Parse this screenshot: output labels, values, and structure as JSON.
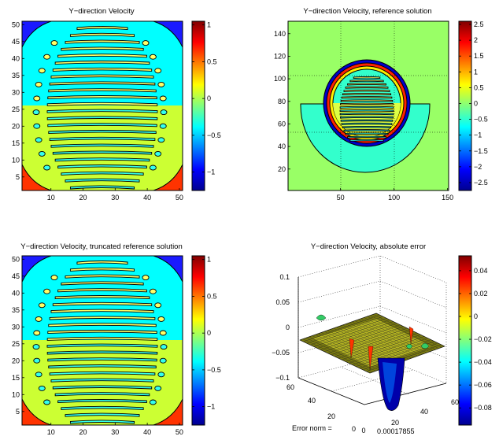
{
  "chart_data": [
    {
      "type": "heatmap",
      "title": "Y−direction Velocity",
      "xlabel": "",
      "ylabel": "",
      "xlim": [
        1,
        51
      ],
      "ylim": [
        1,
        51
      ],
      "xticks": [
        "10",
        "20",
        "30",
        "40",
        "50"
      ],
      "yticks": [
        "5",
        "10",
        "15",
        "20",
        "25",
        "30",
        "35",
        "40",
        "45",
        "50"
      ],
      "colorbar": {
        "range": [
          -1.25,
          1.05
        ],
        "ticks": [
          "1",
          "0.5",
          "0",
          "−0.5",
          "−1"
        ]
      },
      "grid": false
    },
    {
      "type": "heatmap",
      "title": "Y−direction Velocity, reference solution",
      "xlabel": "",
      "ylabel": "",
      "xlim": [
        1,
        151
      ],
      "ylim": [
        1,
        151
      ],
      "xticks": [
        "50",
        "100",
        "150"
      ],
      "yticks": [
        "20",
        "40",
        "60",
        "80",
        "100",
        "120",
        "140"
      ],
      "colorbar": {
        "range": [
          -2.75,
          2.6
        ],
        "ticks": [
          "2.5",
          "2",
          "1.5",
          "1",
          "0.5",
          "0",
          "−0.5",
          "−1",
          "−1.5",
          "−2",
          "−2.5"
        ]
      },
      "grid": true
    },
    {
      "type": "heatmap",
      "title": "Y−direction Velocity, truncated reference solution",
      "xlabel": "",
      "ylabel": "",
      "xlim": [
        1,
        51
      ],
      "ylim": [
        1,
        51
      ],
      "xticks": [
        "10",
        "20",
        "30",
        "40",
        "50"
      ],
      "yticks": [
        "5",
        "10",
        "15",
        "20",
        "25",
        "30",
        "35",
        "40",
        "45",
        "50"
      ],
      "colorbar": {
        "range": [
          -1.25,
          1.05
        ],
        "ticks": [
          "1",
          "0.5",
          "0",
          "−0.5",
          "−1"
        ]
      },
      "grid": false
    },
    {
      "type": "surface",
      "title": "Y−direction Velocity, absolute error",
      "zlim": [
        -0.1,
        0.1
      ],
      "zticks": [
        "0.1",
        "0.05",
        "0",
        "−0.05",
        "−0.1"
      ],
      "xticks": [
        "0",
        "20",
        "40",
        "60"
      ],
      "yticks": [
        "0",
        "20",
        "40",
        "60"
      ],
      "colorbar": {
        "range": [
          -0.095,
          0.053
        ],
        "ticks": [
          "0.04",
          "0.02",
          "0",
          "−0.02",
          "−0.04",
          "−0.06",
          "−0.08"
        ]
      },
      "annotation_label": "Error norm =",
      "annotation_value": "0.00017855"
    }
  ]
}
